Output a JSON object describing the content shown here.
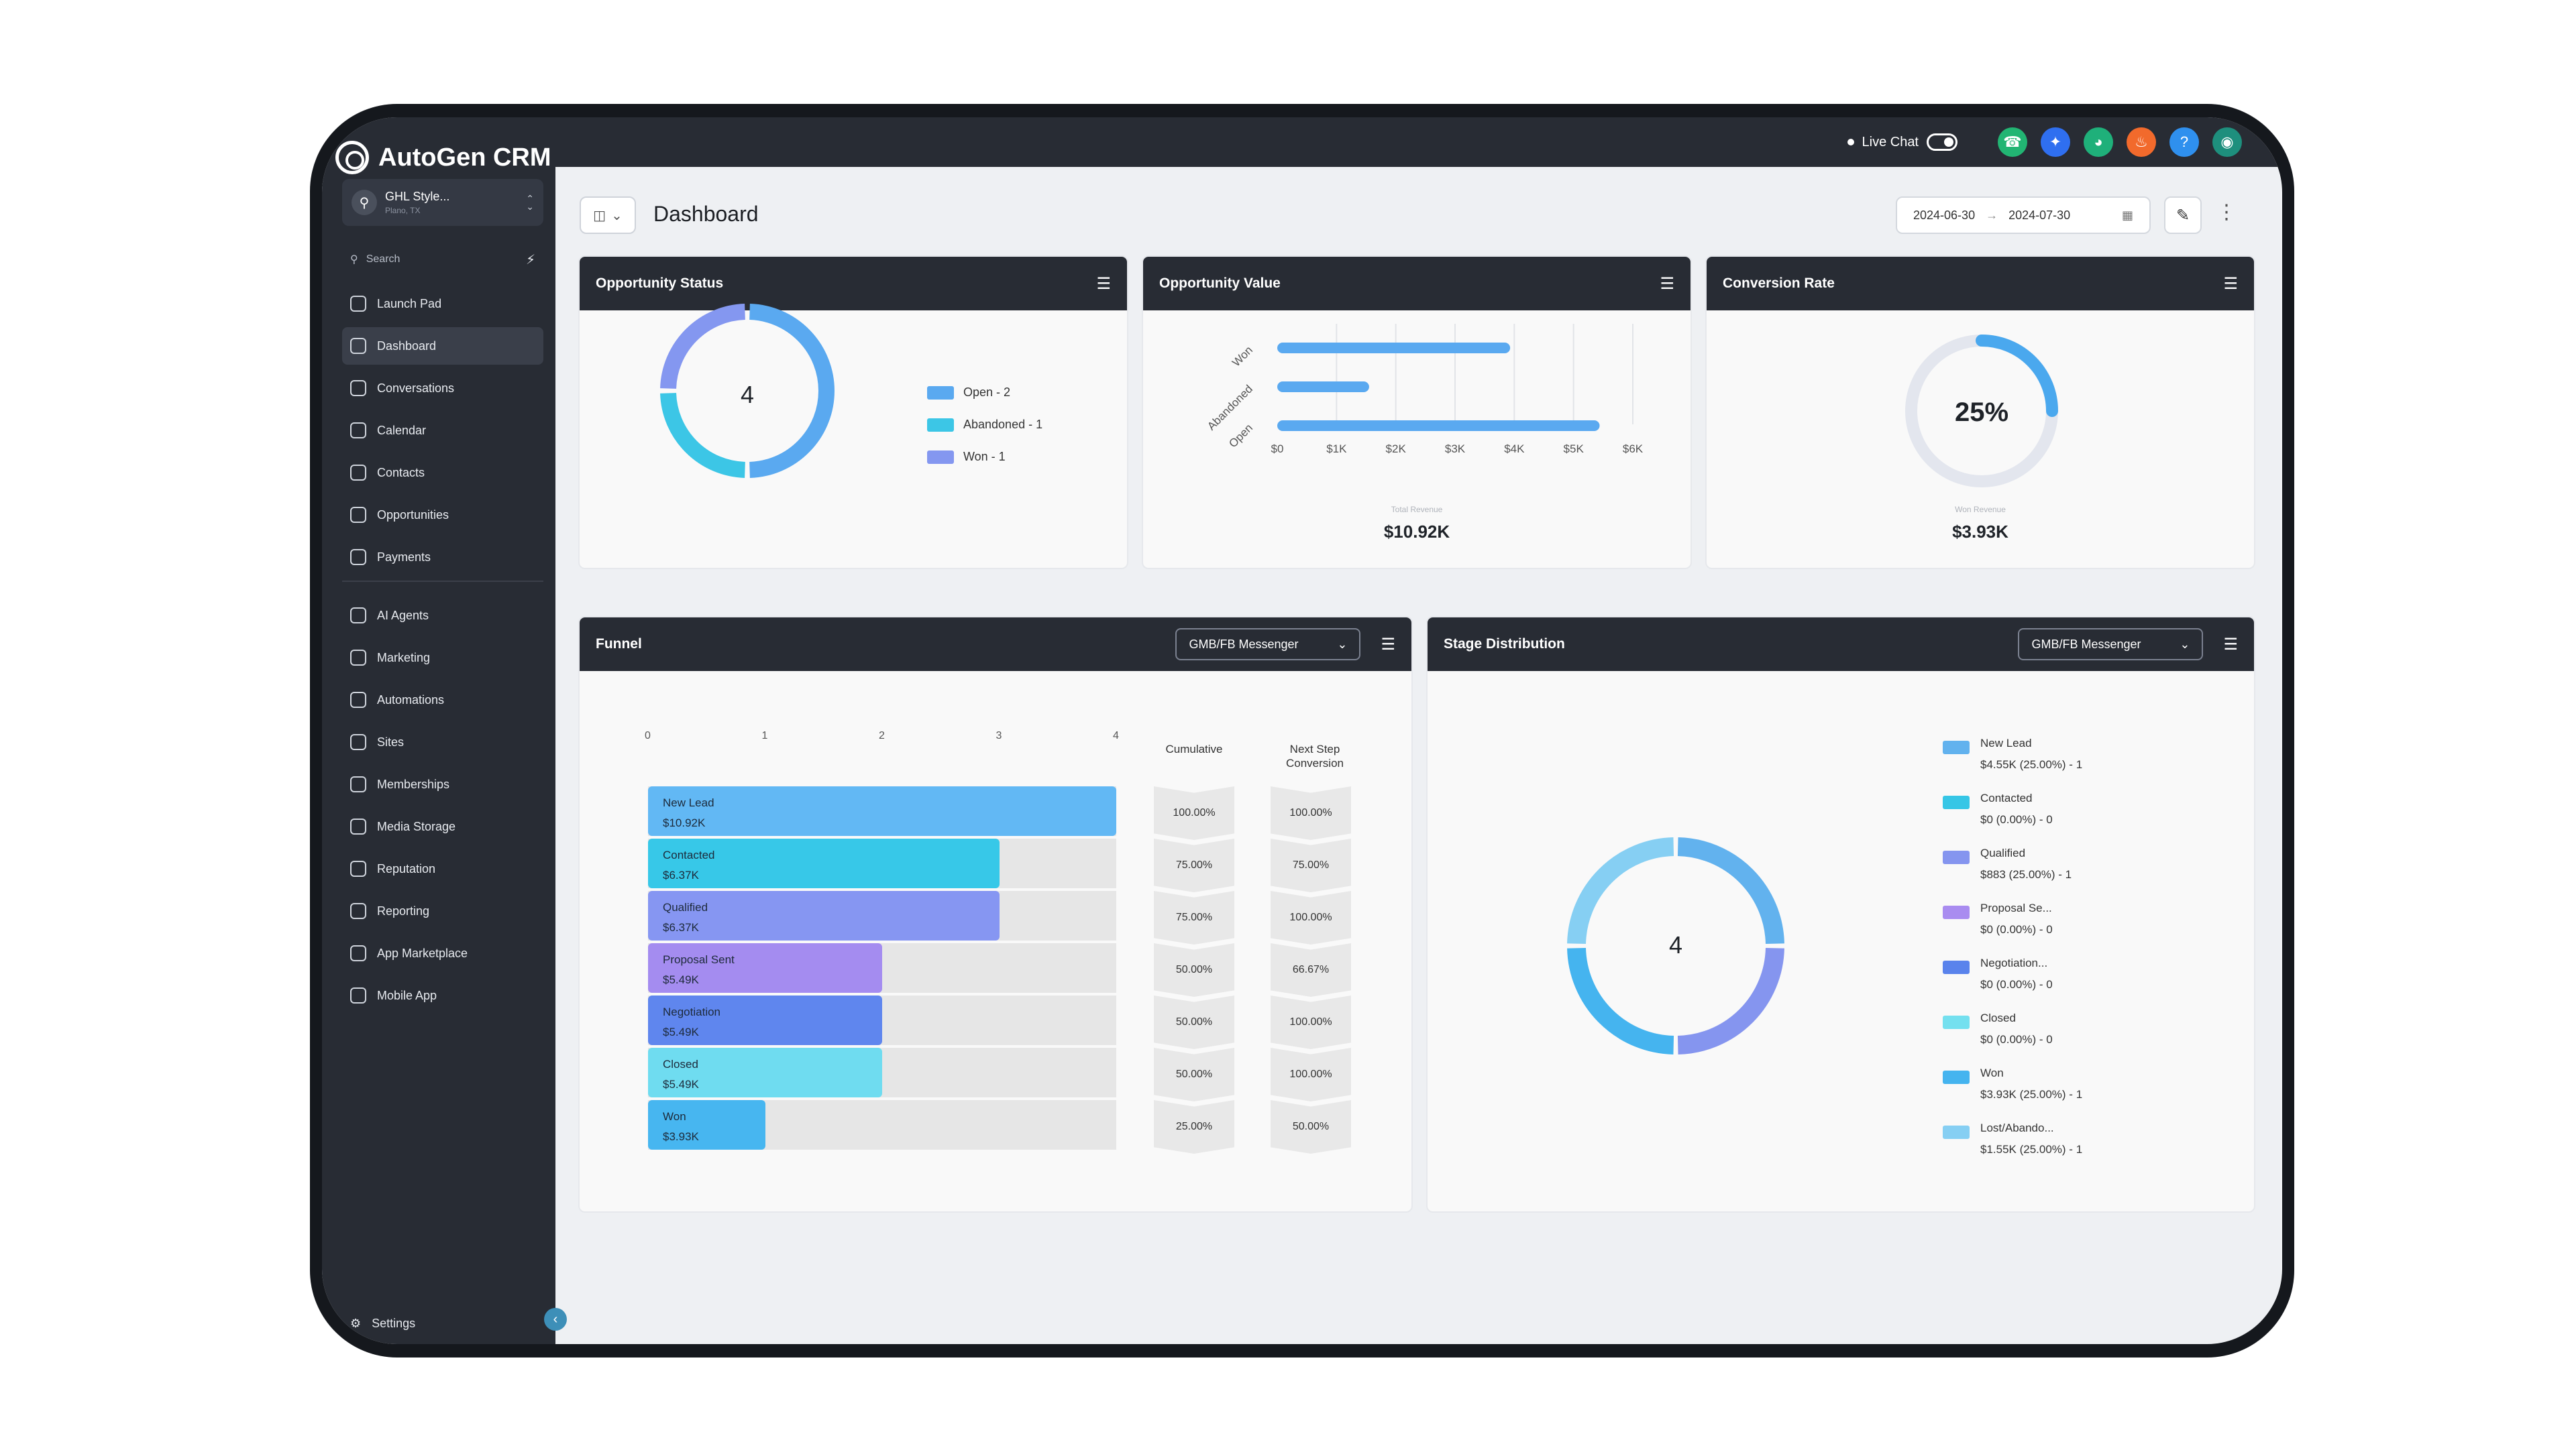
{
  "brand": {
    "name": "AutoGen CRM"
  },
  "account": {
    "name": "GHL Style...",
    "location": "Plano, TX"
  },
  "search": {
    "placeholder": "Search"
  },
  "nav": {
    "group1": [
      "Launch Pad",
      "Dashboard",
      "Conversations",
      "Calendar",
      "Contacts",
      "Opportunities",
      "Payments"
    ],
    "group2": [
      "AI Agents",
      "Marketing",
      "Automations",
      "Sites",
      "Memberships",
      "Media Storage",
      "Reputation",
      "Reporting",
      "App Marketplace",
      "Mobile App"
    ],
    "settings": "Settings"
  },
  "topbar": {
    "live_chat": "Live Chat",
    "icon_colors": [
      "#22b573",
      "#2f6ff0",
      "#1fb07a",
      "#f26a2c",
      "#2f90ee",
      "#1e8f7d"
    ]
  },
  "page": {
    "title": "Dashboard",
    "date_from": "2024-06-30",
    "date_to": "2024-07-30"
  },
  "opportunity_status": {
    "title": "Opportunity Status",
    "total": "4",
    "legend": [
      {
        "label": "Open - 2",
        "color": "#5aa9f0"
      },
      {
        "label": "Abandoned - 1",
        "color": "#3cc6e6"
      },
      {
        "label": "Won - 1",
        "color": "#8497f0"
      }
    ]
  },
  "opportunity_value": {
    "title": "Opportunity Value",
    "total_label": "Total Revenue",
    "total": "$10.92K",
    "chart_data": {
      "type": "bar",
      "orientation": "horizontal",
      "categories": [
        "Won",
        "Abandoned",
        "Open"
      ],
      "values": [
        3930,
        1550,
        5440
      ],
      "xlim": [
        0,
        6000
      ],
      "xticks": [
        "$0",
        "$1K",
        "$2K",
        "$3K",
        "$4K",
        "$5K",
        "$6K"
      ],
      "grid": true,
      "color": "#5aa9f0"
    }
  },
  "conversion_rate": {
    "title": "Conversion Rate",
    "value": "25%",
    "fraction": 0.25,
    "total_label": "Won Revenue",
    "total": "$3.93K"
  },
  "funnel": {
    "title": "Funnel",
    "filter": "GMB/FB Messenger",
    "axis_ticks": [
      "0",
      "1",
      "2",
      "3",
      "4"
    ],
    "col_cumulative": "Cumulative",
    "col_next_line1": "Next Step",
    "col_next_line2": "Conversion",
    "chart_data": {
      "type": "bar",
      "orientation": "horizontal",
      "xlim": [
        0,
        4
      ],
      "stages": [
        {
          "name": "New Lead",
          "count": 4,
          "value": "$10.92K",
          "cumulative": "100.00%",
          "next": "100.00%",
          "color": "#62b8f4"
        },
        {
          "name": "Contacted",
          "count": 3,
          "value": "$6.37K",
          "cumulative": "75.00%",
          "next": "75.00%",
          "color": "#37c8e8"
        },
        {
          "name": "Qualified",
          "count": 3,
          "value": "$6.37K",
          "cumulative": "75.00%",
          "next": "100.00%",
          "color": "#8696f2"
        },
        {
          "name": "Proposal Sent",
          "count": 2,
          "value": "$5.49K",
          "cumulative": "50.00%",
          "next": "66.67%",
          "color": "#a48cf0"
        },
        {
          "name": "Negotiation",
          "count": 2,
          "value": "$5.49K",
          "cumulative": "50.00%",
          "next": "100.00%",
          "color": "#5f86ee"
        },
        {
          "name": "Closed",
          "count": 2,
          "value": "$5.49K",
          "cumulative": "50.00%",
          "next": "100.00%",
          "color": "#6fdcf0"
        },
        {
          "name": "Won",
          "count": 1,
          "value": "$3.93K",
          "cumulative": "25.00%",
          "next": "50.00%",
          "color": "#47b6f0"
        }
      ]
    }
  },
  "stage_distribution": {
    "title": "Stage Distribution",
    "filter": "GMB/FB Messenger",
    "total": "4",
    "chart_data": {
      "type": "pie",
      "donut": true,
      "slices": [
        {
          "name": "New Lead",
          "detail": "$4.55K (25.00%) - 1",
          "value": 1,
          "color": "#62b2ee"
        },
        {
          "name": "Contacted",
          "detail": "$0 (0.00%) - 0",
          "value": 0,
          "color": "#36c6e6"
        },
        {
          "name": "Qualified",
          "detail": "$883 (25.00%) - 1",
          "value": 1,
          "color": "#8595ef"
        },
        {
          "name": "Proposal Se...",
          "detail": "$0 (0.00%) - 0",
          "value": 0,
          "color": "#a98cf0"
        },
        {
          "name": "Negotiation...",
          "detail": "$0 (0.00%) - 0",
          "value": 0,
          "color": "#5a83ec"
        },
        {
          "name": "Closed",
          "detail": "$0 (0.00%) - 0",
          "value": 0,
          "color": "#74e0ef"
        },
        {
          "name": "Won",
          "detail": "$3.93K (25.00%) - 1",
          "value": 1,
          "color": "#45b4ef"
        },
        {
          "name": "Lost/Abando...",
          "detail": "$1.55K (25.00%) - 1",
          "value": 1,
          "color": "#86cff3"
        }
      ]
    }
  }
}
